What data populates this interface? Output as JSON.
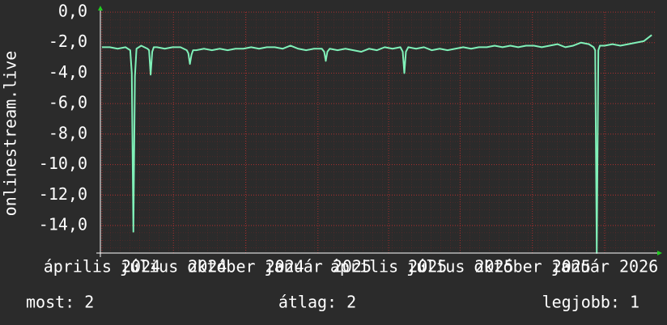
{
  "chart_data": {
    "type": "line",
    "y_label": "onlinestream.live",
    "ylim": [
      -15.8,
      0
    ],
    "yticks": [
      {
        "value": 0,
        "label": "0,0"
      },
      {
        "value": -2,
        "label": "-2,0"
      },
      {
        "value": -4,
        "label": "-4,0"
      },
      {
        "value": -6,
        "label": "-6,0"
      },
      {
        "value": -8,
        "label": "-8,0"
      },
      {
        "value": -10,
        "label": "-10,0"
      },
      {
        "value": -12,
        "label": "-12,0"
      },
      {
        "value": -14,
        "label": "-14,0"
      }
    ],
    "xlim": [
      -2,
      705
    ],
    "xticks": [
      {
        "value": 0,
        "label": "április 2024"
      },
      {
        "value": 91,
        "label": "július 2024"
      },
      {
        "value": 183,
        "label": "október 2024"
      },
      {
        "value": 275,
        "label": "január 2025"
      },
      {
        "value": 365,
        "label": "április 2025"
      },
      {
        "value": 456,
        "label": "július 2025"
      },
      {
        "value": 548,
        "label": "október 2025"
      },
      {
        "value": 640,
        "label": "január 2026"
      }
    ],
    "grid": true,
    "series": [
      {
        "color": "#80f0b8",
        "x": [
          0,
          10,
          20,
          30,
          36,
          38,
          40,
          42,
          44,
          50,
          58,
          60,
          62,
          64,
          66,
          70,
          80,
          90,
          100,
          108,
          110,
          112,
          114,
          116,
          120,
          130,
          140,
          150,
          160,
          170,
          180,
          190,
          200,
          210,
          220,
          230,
          240,
          250,
          260,
          270,
          280,
          283,
          285,
          287,
          290,
          300,
          310,
          320,
          330,
          340,
          350,
          360,
          370,
          380,
          383,
          385,
          387,
          390,
          400,
          410,
          420,
          430,
          440,
          450,
          460,
          470,
          480,
          490,
          500,
          510,
          520,
          530,
          540,
          550,
          560,
          570,
          580,
          590,
          600,
          610,
          620,
          626,
          628,
          630,
          632,
          634,
          640,
          650,
          660,
          670,
          680,
          690,
          700
        ],
        "values": [
          -2.3,
          -2.3,
          -2.4,
          -2.3,
          -2.5,
          -4.0,
          -14.4,
          -4.2,
          -2.4,
          -2.2,
          -2.4,
          -2.5,
          -4.1,
          -2.6,
          -2.3,
          -2.3,
          -2.4,
          -2.3,
          -2.3,
          -2.5,
          -2.7,
          -3.4,
          -2.8,
          -2.5,
          -2.5,
          -2.4,
          -2.5,
          -2.4,
          -2.5,
          -2.4,
          -2.4,
          -2.3,
          -2.4,
          -2.3,
          -2.3,
          -2.4,
          -2.2,
          -2.4,
          -2.5,
          -2.4,
          -2.4,
          -2.6,
          -3.2,
          -2.6,
          -2.4,
          -2.5,
          -2.4,
          -2.5,
          -2.6,
          -2.4,
          -2.5,
          -2.3,
          -2.4,
          -2.3,
          -2.6,
          -4.0,
          -2.6,
          -2.3,
          -2.4,
          -2.3,
          -2.5,
          -2.4,
          -2.5,
          -2.4,
          -2.3,
          -2.4,
          -2.3,
          -2.3,
          -2.2,
          -2.3,
          -2.2,
          -2.3,
          -2.2,
          -2.2,
          -2.3,
          -2.2,
          -2.1,
          -2.3,
          -2.2,
          -2.0,
          -2.1,
          -2.3,
          -2.5,
          -15.8,
          -2.5,
          -2.2,
          -2.2,
          -2.1,
          -2.2,
          -2.1,
          -2.0,
          -1.9,
          -1.5
        ]
      }
    ],
    "stats": [
      "most: 2",
      "átlag: 2",
      "legjobb: 1"
    ]
  }
}
